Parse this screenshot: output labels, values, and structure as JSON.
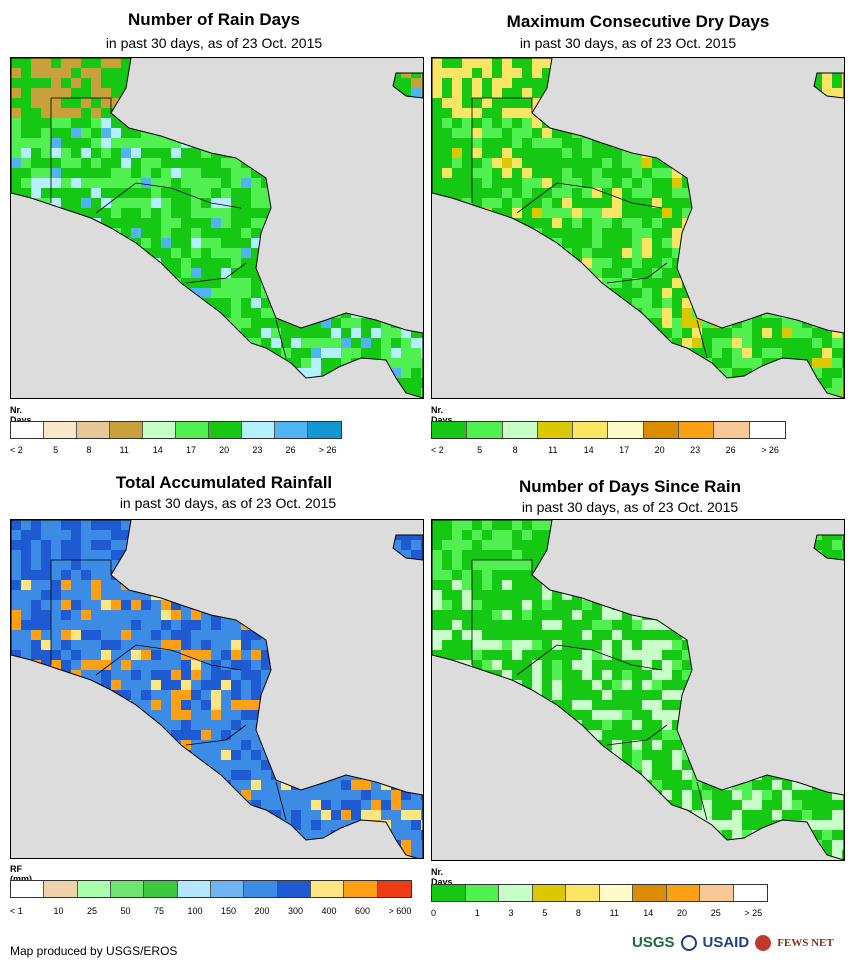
{
  "panels": [
    {
      "id": "rain-days",
      "title": "Number of Rain Days",
      "subtitle": "in past 30 days, as of 23 Oct. 2015",
      "legend_title": "Nr. Days",
      "legend_ticks": [
        "< 2",
        "5",
        "8",
        "11",
        "14",
        "17",
        "20",
        "23",
        "26",
        "> 26"
      ],
      "legend_colors": [
        "#ffffff",
        "#fae6c8",
        "#e6c896",
        "#c8a03c",
        "#c8ffc8",
        "#50f050",
        "#14c814",
        "#b4f0ff",
        "#50b4f0",
        "#1496d2"
      ],
      "palette": {
        "base": "#14c814",
        "alt": "#50f050",
        "accent": "#b4f0ff",
        "accent2": "#50b4f0",
        "north": "#c8a03c"
      }
    },
    {
      "id": "dry-days",
      "title": "Maximum Consecutive Dry Days",
      "subtitle": "in past 30 days, as of 23 Oct. 2015",
      "legend_title": "Nr. Days",
      "legend_ticks": [
        "< 2",
        "5",
        "8",
        "11",
        "14",
        "17",
        "20",
        "23",
        "26",
        "> 26"
      ],
      "legend_colors": [
        "#14c814",
        "#50f050",
        "#c8ffc8",
        "#dcc800",
        "#fae664",
        "#fffac8",
        "#dc8c00",
        "#faa014",
        "#fac896",
        "#ffffff"
      ],
      "palette": {
        "base": "#14c814",
        "alt": "#50f050",
        "accent": "#fae664",
        "accent2": "#dcc800",
        "north": "#fae664"
      }
    },
    {
      "id": "rainfall",
      "title": "Total Accumulated Rainfall",
      "subtitle": "in past 30 days, as of 23 Oct. 2015",
      "legend_title": "RF (mm)",
      "legend_ticks": [
        "< 1",
        "10",
        "25",
        "50",
        "75",
        "100",
        "150",
        "200",
        "300",
        "400",
        "600",
        "> 600"
      ],
      "legend_colors": [
        "#ffffff",
        "#f0d2aa",
        "#aaffaa",
        "#6ee66e",
        "#3cc83c",
        "#b4e6ff",
        "#6eb4f0",
        "#3c8ce6",
        "#1e5ad2",
        "#ffe682",
        "#ffa014",
        "#f03c14"
      ],
      "palette": {
        "base": "#3c8ce6",
        "alt": "#1e5ad2",
        "accent": "#ffa014",
        "accent2": "#ffe682",
        "north": "#1e5ad2"
      }
    },
    {
      "id": "since-rain",
      "title": "Number of Days Since Rain",
      "subtitle": "in past 30 days, as of 23 Oct. 2015",
      "legend_title": "Nr. Days",
      "legend_ticks": [
        "0",
        "1",
        "3",
        "5",
        "8",
        "11",
        "14",
        "20",
        "25",
        "> 25"
      ],
      "legend_colors": [
        "#14c814",
        "#50f050",
        "#c8ffc8",
        "#dcc800",
        "#fae664",
        "#fffac8",
        "#dc8c00",
        "#faa014",
        "#fac896",
        "#ffffff"
      ],
      "palette": {
        "base": "#14c814",
        "alt": "#c8ffc8",
        "accent": "#50f050",
        "accent2": "#14c814",
        "north": "#50f050"
      }
    }
  ],
  "credit": "Map produced by USGS/EROS",
  "logos": {
    "usgs": "USGS",
    "usaid": "USAID",
    "fewsnet": "FEWS NET"
  }
}
